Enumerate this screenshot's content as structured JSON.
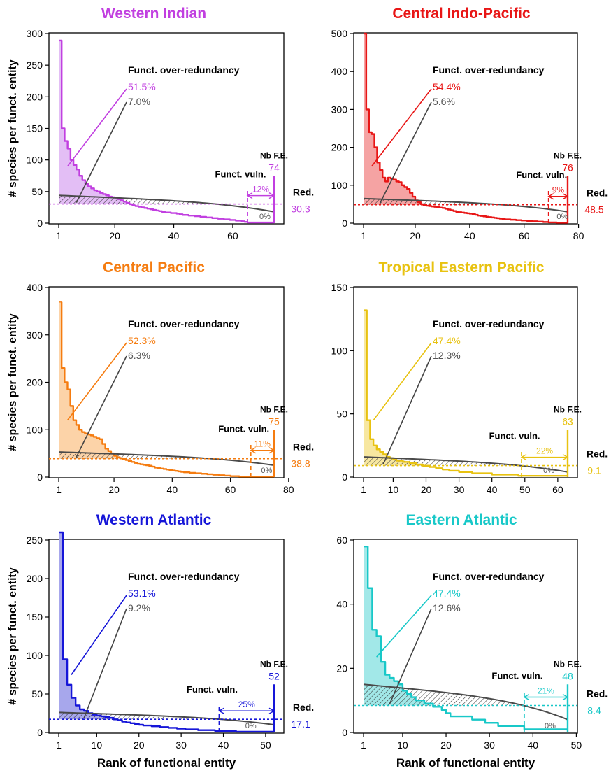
{
  "figure": {
    "ylabel": "# species per funct. entity",
    "xlabel": "Rank of functional entity",
    "labels": {
      "over_redundancy": "Funct. over-redundancy",
      "vulnerability": "Funct. vuln.",
      "nb_fe": "Nb F.E.",
      "redundancy": "Red."
    }
  },
  "chart_data": [
    {
      "type": "line",
      "title": "Western Indian",
      "color": "#c13fe0",
      "fill": "#e3bef5",
      "xlabel": "",
      "ylabel": "# species per funct. entity",
      "xlim": [
        1,
        74
      ],
      "ylim": [
        0,
        300
      ],
      "xticks": [
        1,
        20,
        40,
        60
      ],
      "yticks": [
        0,
        50,
        100,
        150,
        200,
        250,
        300
      ],
      "nb_fe": 74,
      "redundancy": 30.3,
      "over_redundancy_pct": "51.5%",
      "over_redundancy_null_pct": "7.0%",
      "vulnerability_pct": "12%",
      "vulnerability_null_pct": "0%",
      "vuln_start": 65,
      "series": [
        {
          "values": [
            289,
            150,
            130,
            118,
            100,
            92,
            85,
            75,
            68,
            62,
            58,
            55,
            52,
            50,
            48,
            46,
            44,
            42,
            41,
            40,
            38,
            36,
            34,
            32,
            30,
            28,
            27,
            26,
            25,
            24,
            23,
            22,
            21,
            20,
            19,
            18,
            17,
            17,
            16,
            16,
            15,
            14,
            13,
            13,
            12,
            12,
            11,
            11,
            10,
            10,
            9,
            9,
            8,
            8,
            7,
            7,
            6,
            6,
            5,
            5,
            4,
            4,
            3,
            2,
            1,
            1,
            1,
            1,
            1,
            1,
            1,
            1,
            1,
            1
          ]
        },
        {
          "values": [
            44,
            18
          ]
        }
      ]
    },
    {
      "type": "line",
      "title": "Central Indo-Pacific",
      "color": "#e81616",
      "fill": "#f5a3a3",
      "xlabel": "",
      "ylabel": "",
      "xlim": [
        1,
        76
      ],
      "ylim": [
        0,
        500
      ],
      "xticks": [
        1,
        20,
        40,
        60,
        80
      ],
      "yticks": [
        0,
        100,
        200,
        300,
        400,
        500
      ],
      "nb_fe": 76,
      "redundancy": 48.5,
      "over_redundancy_pct": "54.4%",
      "over_redundancy_null_pct": "5.6%",
      "vulnerability_pct": "9%",
      "vulnerability_null_pct": "0%",
      "vuln_start": 69,
      "series": [
        {
          "values": [
            500,
            300,
            240,
            235,
            200,
            160,
            140,
            120,
            110,
            120,
            118,
            115,
            110,
            108,
            100,
            95,
            90,
            80,
            70,
            60,
            55,
            50,
            48,
            46,
            45,
            44,
            43,
            42,
            41,
            40,
            38,
            36,
            34,
            32,
            30,
            29,
            28,
            27,
            26,
            25,
            24,
            22,
            20,
            19,
            18,
            17,
            16,
            15,
            14,
            13,
            12,
            11,
            10,
            10,
            9,
            9,
            8,
            8,
            7,
            7,
            6,
            6,
            5,
            5,
            4,
            4,
            3,
            3,
            2,
            2,
            2,
            1,
            1,
            1,
            1,
            1
          ]
        },
        {
          "values": [
            65,
            30
          ]
        }
      ]
    },
    {
      "type": "line",
      "title": "Central Pacific",
      "color": "#f57c10",
      "fill": "#fcd3a8",
      "xlabel": "",
      "ylabel": "# species per funct. entity",
      "xlim": [
        1,
        75
      ],
      "ylim": [
        0,
        400
      ],
      "xticks": [
        1,
        20,
        40,
        60,
        80
      ],
      "yticks": [
        0,
        100,
        200,
        300,
        400
      ],
      "nb_fe": 75,
      "redundancy": 38.8,
      "over_redundancy_pct": "52.3%",
      "over_redundancy_null_pct": "6.3%",
      "vulnerability_pct": "11%",
      "vulnerability_null_pct": "0%",
      "vuln_start": 67,
      "series": [
        {
          "values": [
            370,
            230,
            200,
            185,
            150,
            120,
            110,
            100,
            95,
            92,
            90,
            88,
            85,
            82,
            80,
            70,
            60,
            55,
            50,
            45,
            42,
            40,
            38,
            36,
            34,
            32,
            30,
            28,
            27,
            26,
            25,
            24,
            22,
            20,
            19,
            18,
            17,
            16,
            15,
            14,
            13,
            12,
            11,
            10,
            10,
            9,
            9,
            8,
            8,
            7,
            7,
            6,
            6,
            5,
            5,
            4,
            4,
            3,
            3,
            2,
            2,
            2,
            1,
            1,
            1,
            1,
            1,
            1,
            1,
            1,
            1,
            1,
            1,
            1,
            1
          ]
        },
        {
          "values": [
            53,
            25
          ]
        }
      ]
    },
    {
      "type": "line",
      "title": "Tropical Eastern Pacific",
      "color": "#e8c210",
      "fill": "#f7e7a0",
      "xlabel": "",
      "ylabel": "",
      "xlim": [
        1,
        63
      ],
      "ylim": [
        0,
        150
      ],
      "xticks": [
        1,
        10,
        20,
        30,
        40,
        50,
        60
      ],
      "yticks": [
        0,
        50,
        100,
        150
      ],
      "nb_fe": 63,
      "redundancy": 9.1,
      "over_redundancy_pct": "47.4%",
      "over_redundancy_null_pct": "12.3%",
      "vulnerability_pct": "22%",
      "vulnerability_null_pct": "0%",
      "vuln_start": 49,
      "series": [
        {
          "values": [
            132,
            45,
            30,
            25,
            22,
            20,
            18,
            16,
            15,
            14,
            13,
            13,
            12,
            12,
            11,
            11,
            10,
            10,
            9,
            9,
            8,
            8,
            7,
            7,
            6,
            6,
            5,
            5,
            5,
            4,
            4,
            4,
            4,
            3,
            3,
            3,
            3,
            3,
            3,
            2,
            2,
            2,
            2,
            2,
            2,
            2,
            2,
            1,
            1,
            1,
            1,
            1,
            1,
            1,
            1,
            1,
            1,
            1,
            1,
            1,
            1,
            1,
            1
          ]
        },
        {
          "values": [
            16,
            4
          ]
        }
      ]
    },
    {
      "type": "line",
      "title": "Western Atlantic",
      "color": "#1616d8",
      "fill": "#a7a7ec",
      "xlabel": "Rank of functional entity",
      "ylabel": "# species per funct. entity",
      "xlim": [
        1,
        52
      ],
      "ylim": [
        0,
        250
      ],
      "xticks": [
        1,
        10,
        20,
        30,
        40,
        50
      ],
      "yticks": [
        0,
        50,
        100,
        150,
        200,
        250
      ],
      "nb_fe": 52,
      "redundancy": 17.1,
      "over_redundancy_pct": "53.1%",
      "over_redundancy_null_pct": "9.2%",
      "vulnerability_pct": "25%",
      "vulnerability_null_pct": "0%",
      "vuln_start": 39,
      "series": [
        {
          "values": [
            260,
            95,
            62,
            45,
            35,
            30,
            28,
            25,
            23,
            22,
            21,
            20,
            19,
            17,
            16,
            14,
            13,
            12,
            11,
            10,
            9,
            9,
            8,
            8,
            7,
            7,
            6,
            6,
            5,
            5,
            4,
            4,
            4,
            3,
            3,
            3,
            3,
            2,
            2,
            2,
            2,
            2,
            1,
            1,
            1,
            1,
            1,
            1,
            1,
            1,
            1,
            1
          ]
        },
        {
          "values": [
            26,
            10
          ]
        }
      ]
    },
    {
      "type": "line",
      "title": "Eastern Atlantic",
      "color": "#18c8c8",
      "fill": "#a2e8e8",
      "xlabel": "Rank of functional entity",
      "ylabel": "",
      "xlim": [
        1,
        48
      ],
      "ylim": [
        0,
        60
      ],
      "xticks": [
        1,
        10,
        20,
        30,
        40,
        50
      ],
      "yticks": [
        0,
        20,
        40,
        60
      ],
      "nb_fe": 48,
      "redundancy": 8.4,
      "over_redundancy_pct": "47.4%",
      "over_redundancy_null_pct": "12.6%",
      "vulnerability_pct": "21%",
      "vulnerability_null_pct": "0%",
      "vuln_start": 38,
      "series": [
        {
          "values": [
            58,
            45,
            32,
            30,
            22,
            18,
            17,
            16,
            15,
            13,
            12,
            11,
            10,
            10,
            9,
            9,
            8,
            8,
            7,
            6,
            5,
            5,
            5,
            5,
            5,
            4,
            4,
            4,
            3,
            3,
            3,
            2,
            2,
            2,
            2,
            2,
            2,
            1,
            1,
            1,
            1,
            1,
            1,
            1,
            1,
            1,
            1,
            1
          ]
        },
        {
          "values": [
            15,
            4
          ]
        }
      ]
    }
  ]
}
